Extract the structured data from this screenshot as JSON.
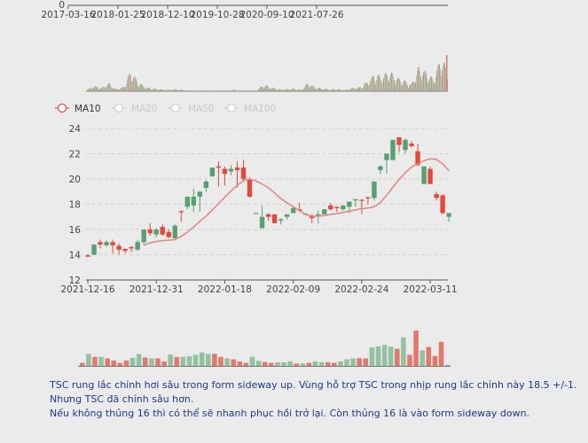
{
  "colors": {
    "up": "#5a9e73",
    "down": "#e04a3c",
    "vol_up": "#93c2a3",
    "vol_down": "#e2796d",
    "ma10": "#e08a86",
    "background": "#ebebeb",
    "note_text": "#1b3a8c"
  },
  "overview": {
    "y_label": "0",
    "x_ticks": [
      "2017-03-16",
      "2018-01-25",
      "2018-12-10",
      "2019-10-28",
      "2020-09-10",
      "2021-07-26"
    ],
    "volume_profile": [
      2,
      8,
      5,
      12,
      3,
      6,
      30,
      14,
      6,
      4,
      3,
      2,
      3,
      2,
      1,
      1,
      1,
      1,
      1,
      1,
      2,
      1,
      1,
      1,
      10,
      6,
      3,
      3,
      4,
      2,
      12,
      6,
      4,
      3,
      3,
      2,
      5,
      6,
      14,
      25,
      22,
      30,
      20,
      16,
      10,
      36,
      28,
      18,
      50,
      30
    ]
  },
  "legend": [
    {
      "label": "MA10",
      "active": true
    },
    {
      "label": "MA20",
      "active": false
    },
    {
      "label": "MA50",
      "active": false
    },
    {
      "label": "MA100",
      "active": false
    }
  ],
  "chart_data": {
    "type": "candlestick",
    "ylim": [
      12,
      24
    ],
    "y_ticks": [
      "12",
      "14",
      "16",
      "18",
      "20",
      "22",
      "24"
    ],
    "x_ticks": [
      {
        "label": "2021-12-16",
        "index": 0
      },
      {
        "label": "2021-12-31",
        "index": 11
      },
      {
        "label": "2022-01-18",
        "index": 22
      },
      {
        "label": "2022-02-09",
        "index": 33
      },
      {
        "label": "2022-02-24",
        "index": 44
      },
      {
        "label": "2022-03-11",
        "index": 55
      }
    ],
    "grid": true,
    "ohlc": [
      [
        13.95,
        13.85,
        13.8,
        14.05
      ],
      [
        14.0,
        14.8,
        13.95,
        14.85
      ],
      [
        15.0,
        14.8,
        14.5,
        15.2
      ],
      [
        14.75,
        15.0,
        14.6,
        15.15
      ],
      [
        15.0,
        14.75,
        14.1,
        15.2
      ],
      [
        14.7,
        14.4,
        14.0,
        14.9
      ],
      [
        14.45,
        14.3,
        14.1,
        14.5
      ],
      [
        14.6,
        14.5,
        14.2,
        14.7
      ],
      [
        14.4,
        15.0,
        14.3,
        15.2
      ],
      [
        15.0,
        16.0,
        14.8,
        16.0
      ],
      [
        16.0,
        15.7,
        15.5,
        16.5
      ],
      [
        15.6,
        16.0,
        15.4,
        16.1
      ],
      [
        16.2,
        15.6,
        15.5,
        16.4
      ],
      [
        15.8,
        15.4,
        15.3,
        16.0
      ],
      [
        15.3,
        16.3,
        15.2,
        16.4
      ],
      [
        17.45,
        17.4,
        16.6,
        17.5
      ],
      [
        17.8,
        18.6,
        17.6,
        18.6
      ],
      [
        17.9,
        18.6,
        17.4,
        19.2
      ],
      [
        18.6,
        19.0,
        17.4,
        19.0
      ],
      [
        19.3,
        19.8,
        19.0,
        19.9
      ],
      [
        20.2,
        20.9,
        20.2,
        20.9
      ],
      [
        21.0,
        20.9,
        19.4,
        21.4
      ],
      [
        20.8,
        20.4,
        19.5,
        21.0
      ],
      [
        20.6,
        20.8,
        20.3,
        21.1
      ],
      [
        20.9,
        20.7,
        19.3,
        21.4
      ],
      [
        20.9,
        20.0,
        19.9,
        21.5
      ],
      [
        20.0,
        18.6,
        18.5,
        20.1
      ],
      [
        17.3,
        17.32,
        17.3,
        17.32
      ],
      [
        16.1,
        17.0,
        16.1,
        17.9
      ],
      [
        17.2,
        17.0,
        16.7,
        17.3
      ],
      [
        17.2,
        16.5,
        16.5,
        17.2
      ],
      [
        16.7,
        16.8,
        16.4,
        16.9
      ],
      [
        17.0,
        17.2,
        16.8,
        17.2
      ],
      [
        17.3,
        17.7,
        17.3,
        17.8
      ],
      [
        17.6,
        17.5,
        17.4,
        18.1
      ],
      [
        17.2,
        17.25,
        17.1,
        17.3
      ],
      [
        17.1,
        16.9,
        16.5,
        17.2
      ],
      [
        17.1,
        17.2,
        16.5,
        17.5
      ],
      [
        17.2,
        17.6,
        17.2,
        17.6
      ],
      [
        17.9,
        17.6,
        17.5,
        18.1
      ],
      [
        17.8,
        17.7,
        17.4,
        17.8
      ],
      [
        17.6,
        17.9,
        17.5,
        17.9
      ],
      [
        17.8,
        18.2,
        17.3,
        18.2
      ],
      [
        18.3,
        18.4,
        17.8,
        18.4
      ],
      [
        18.35,
        18.3,
        17.2,
        18.4
      ],
      [
        18.55,
        18.5,
        18.0,
        18.6
      ],
      [
        18.5,
        19.8,
        18.3,
        19.8
      ],
      [
        20.7,
        21.0,
        20.4,
        21.1
      ],
      [
        21.5,
        22.0,
        20.4,
        22.0
      ],
      [
        21.5,
        23.1,
        21.5,
        23.1
      ],
      [
        23.3,
        22.7,
        22.1,
        23.3
      ],
      [
        22.3,
        23.1,
        22.0,
        23.2
      ],
      [
        22.8,
        22.6,
        22.5,
        23.0
      ],
      [
        22.2,
        21.1,
        21.0,
        22.8
      ],
      [
        19.6,
        21.0,
        19.6,
        21.0
      ],
      [
        20.8,
        19.6,
        19.6,
        21.0
      ],
      [
        18.8,
        18.5,
        18.3,
        19.0
      ],
      [
        18.7,
        17.3,
        17.2,
        18.8
      ],
      [
        17.0,
        17.3,
        16.6,
        17.3
      ]
    ],
    "ma10": [
      null,
      null,
      null,
      null,
      null,
      null,
      null,
      null,
      null,
      14.75,
      14.95,
      15.05,
      15.12,
      15.15,
      15.2,
      15.45,
      15.8,
      16.2,
      16.65,
      17.05,
      17.55,
      18.05,
      18.55,
      19.05,
      19.5,
      19.85,
      20.0,
      19.85,
      19.6,
      19.3,
      18.9,
      18.45,
      18.1,
      17.8,
      17.5,
      17.2,
      17.05,
      17.05,
      17.1,
      17.2,
      17.25,
      17.35,
      17.45,
      17.55,
      17.65,
      17.7,
      17.8,
      18.15,
      18.7,
      19.35,
      19.95,
      20.5,
      20.95,
      21.2,
      21.45,
      21.6,
      21.55,
      21.2,
      20.65
    ],
    "volume": [
      10,
      40,
      30,
      30,
      25,
      18,
      10,
      18,
      27,
      40,
      28,
      25,
      25,
      15,
      38,
      30,
      30,
      32,
      37,
      45,
      40,
      40,
      30,
      25,
      22,
      15,
      10,
      30,
      17,
      13,
      10,
      12,
      12,
      15,
      8,
      8,
      10,
      15,
      12,
      12,
      10,
      15,
      22,
      25,
      26,
      25,
      62,
      65,
      70,
      64,
      57,
      95,
      37,
      118,
      52,
      63,
      33,
      80,
      4
    ]
  },
  "note": {
    "lines": [
      "TSC rung lắc chỉnh hơi sâu trong form sideway up. Vùng hỗ trợ TSC trong nhịp rung lắc chỉnh này 18.5 +/-1.",
      "Nhưng TSC đã chỉnh sâu hơn.",
      "Nếu không thủng 16 thì có thể sẽ nhanh phục hồi trở lại. Còn thủng 16 là vào form sideway down."
    ]
  }
}
